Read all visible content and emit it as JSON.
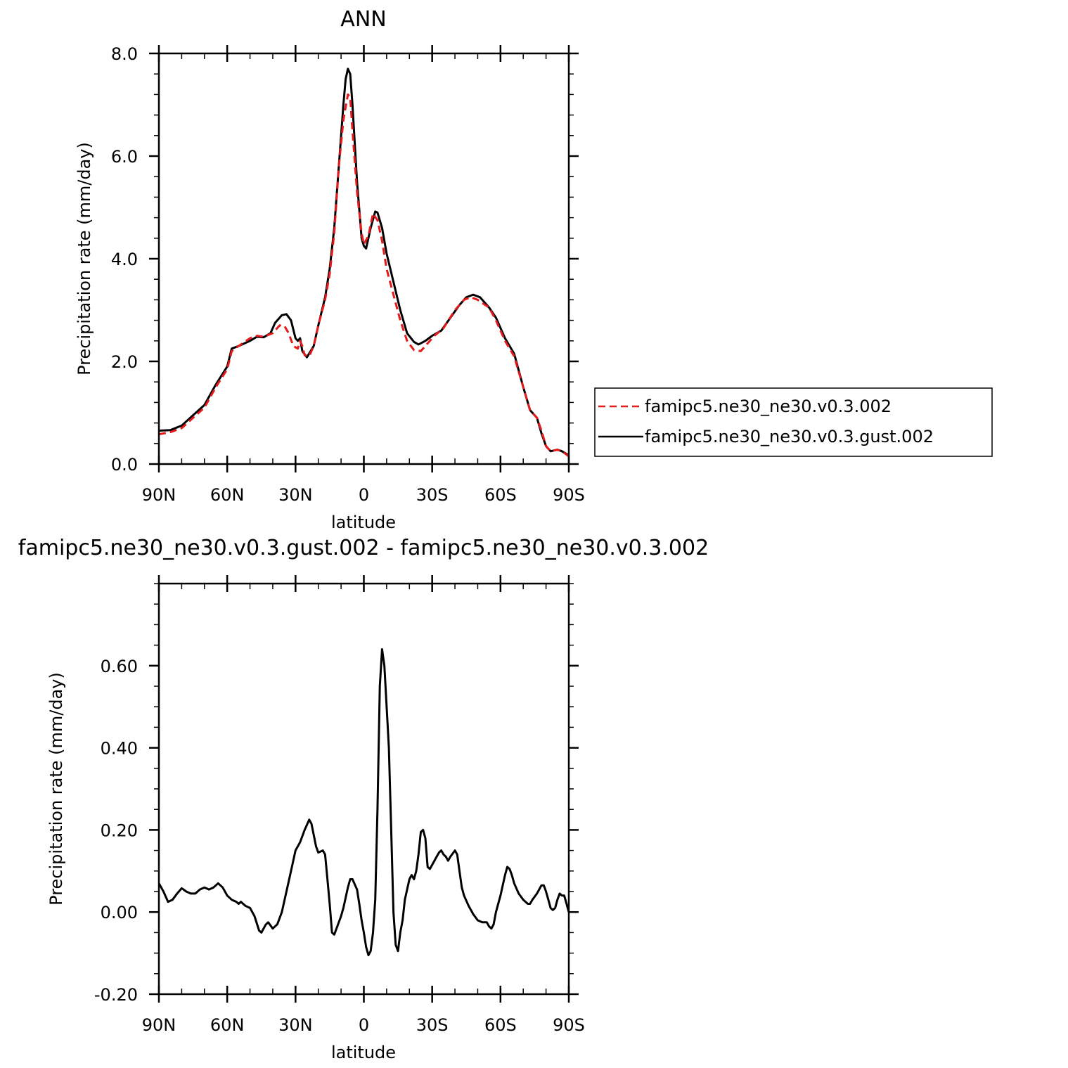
{
  "chart_data": [
    {
      "type": "line",
      "title": "ANN",
      "xlabel": "latitude",
      "ylabel": "Precipitation rate (mm/day)",
      "xlim": [
        90,
        -90
      ],
      "ylim": [
        0,
        8
      ],
      "x_ticks": [
        90,
        60,
        30,
        0,
        -30,
        -60,
        -90
      ],
      "x_tick_labels": [
        "90N",
        "60N",
        "30N",
        "0",
        "30S",
        "60S",
        "90S"
      ],
      "y_ticks": [
        0,
        2,
        4,
        6,
        8
      ],
      "y_tick_labels": [
        "0.0",
        "2.0",
        "4.0",
        "6.0",
        "8.0"
      ],
      "legend_position": "right",
      "series": [
        {
          "name": "famipc5.ne30_ne30.v0.3.002",
          "color": "#e41a1c",
          "dash": true,
          "points": [
            [
              90,
              0.58
            ],
            [
              85,
              0.62
            ],
            [
              80,
              0.7
            ],
            [
              75,
              0.9
            ],
            [
              70,
              1.1
            ],
            [
              65,
              1.5
            ],
            [
              60,
              1.85
            ],
            [
              58,
              2.2
            ],
            [
              55,
              2.3
            ],
            [
              50,
              2.45
            ],
            [
              47,
              2.5
            ],
            [
              44,
              2.48
            ],
            [
              40,
              2.55
            ],
            [
              37,
              2.7
            ],
            [
              35,
              2.7
            ],
            [
              33,
              2.55
            ],
            [
              31,
              2.3
            ],
            [
              29,
              2.25
            ],
            [
              28,
              2.4
            ],
            [
              27,
              2.3
            ],
            [
              26,
              2.12
            ],
            [
              24,
              2.1
            ],
            [
              22,
              2.3
            ],
            [
              20,
              2.7
            ],
            [
              17,
              3.2
            ],
            [
              15,
              3.7
            ],
            [
              13,
              4.5
            ],
            [
              11,
              5.8
            ],
            [
              9,
              6.7
            ],
            [
              7,
              7.2
            ],
            [
              6,
              7.15
            ],
            [
              5,
              6.5
            ],
            [
              3,
              5.3
            ],
            [
              1,
              4.5
            ],
            [
              0,
              4.28
            ],
            [
              -2,
              4.45
            ],
            [
              -4,
              4.88
            ],
            [
              -6,
              4.75
            ],
            [
              -8,
              4.35
            ],
            [
              -10,
              3.8
            ],
            [
              -13,
              3.3
            ],
            [
              -16,
              2.8
            ],
            [
              -19,
              2.4
            ],
            [
              -22,
              2.22
            ],
            [
              -25,
              2.2
            ],
            [
              -28,
              2.35
            ],
            [
              -31,
              2.5
            ],
            [
              -35,
              2.65
            ],
            [
              -40,
              3.0
            ],
            [
              -44,
              3.2
            ],
            [
              -47,
              3.25
            ],
            [
              -50,
              3.2
            ],
            [
              -55,
              3.05
            ],
            [
              -58,
              2.8
            ],
            [
              -62,
              2.4
            ],
            [
              -66,
              2.1
            ],
            [
              -70,
              1.5
            ],
            [
              -73,
              1.05
            ],
            [
              -76,
              0.9
            ],
            [
              -78,
              0.65
            ],
            [
              -80,
              0.35
            ],
            [
              -82,
              0.25
            ],
            [
              -85,
              0.28
            ],
            [
              -87,
              0.25
            ],
            [
              -90,
              0.15
            ]
          ]
        },
        {
          "name": "famipc5.ne30_ne30.v0.3.gust.002",
          "color": "#000000",
          "dash": false,
          "points": [
            [
              90,
              0.65
            ],
            [
              85,
              0.66
            ],
            [
              80,
              0.75
            ],
            [
              75,
              0.95
            ],
            [
              70,
              1.15
            ],
            [
              65,
              1.55
            ],
            [
              60,
              1.9
            ],
            [
              58,
              2.25
            ],
            [
              55,
              2.3
            ],
            [
              50,
              2.4
            ],
            [
              47,
              2.48
            ],
            [
              44,
              2.47
            ],
            [
              41,
              2.55
            ],
            [
              39,
              2.75
            ],
            [
              36,
              2.9
            ],
            [
              34,
              2.92
            ],
            [
              32,
              2.8
            ],
            [
              30,
              2.45
            ],
            [
              29,
              2.4
            ],
            [
              28,
              2.45
            ],
            [
              27,
              2.2
            ],
            [
              25,
              2.08
            ],
            [
              22,
              2.3
            ],
            [
              20,
              2.7
            ],
            [
              17,
              3.25
            ],
            [
              15,
              3.8
            ],
            [
              13,
              4.6
            ],
            [
              11,
              5.8
            ],
            [
              9,
              7.0
            ],
            [
              8,
              7.5
            ],
            [
              7,
              7.7
            ],
            [
              6,
              7.6
            ],
            [
              5,
              7.0
            ],
            [
              3,
              5.5
            ],
            [
              1,
              4.4
            ],
            [
              0,
              4.25
            ],
            [
              -1,
              4.2
            ],
            [
              -3,
              4.6
            ],
            [
              -5,
              4.92
            ],
            [
              -6,
              4.9
            ],
            [
              -8,
              4.6
            ],
            [
              -10,
              4.1
            ],
            [
              -13,
              3.55
            ],
            [
              -16,
              3.0
            ],
            [
              -19,
              2.55
            ],
            [
              -22,
              2.38
            ],
            [
              -24,
              2.33
            ],
            [
              -27,
              2.4
            ],
            [
              -30,
              2.5
            ],
            [
              -34,
              2.6
            ],
            [
              -38,
              2.85
            ],
            [
              -42,
              3.1
            ],
            [
              -45,
              3.25
            ],
            [
              -48,
              3.3
            ],
            [
              -51,
              3.25
            ],
            [
              -55,
              3.05
            ],
            [
              -58,
              2.85
            ],
            [
              -62,
              2.45
            ],
            [
              -66,
              2.15
            ],
            [
              -70,
              1.5
            ],
            [
              -73,
              1.05
            ],
            [
              -76,
              0.9
            ],
            [
              -78,
              0.6
            ],
            [
              -80,
              0.35
            ],
            [
              -82,
              0.25
            ],
            [
              -85,
              0.28
            ],
            [
              -87,
              0.25
            ],
            [
              -90,
              0.17
            ]
          ]
        }
      ]
    },
    {
      "type": "line",
      "title": "famipc5.ne30_ne30.v0.3.gust.002 - famipc5.ne30_ne30.v0.3.002",
      "xlabel": "latitude",
      "ylabel": "Precipitation rate (mm/day)",
      "xlim": [
        90,
        -90
      ],
      "ylim": [
        -0.2,
        0.8
      ],
      "x_ticks": [
        90,
        60,
        30,
        0,
        -30,
        -60,
        -90
      ],
      "x_tick_labels": [
        "90N",
        "60N",
        "30N",
        "0",
        "30S",
        "60S",
        "90S"
      ],
      "y_ticks": [
        -0.2,
        0,
        0.2,
        0.4,
        0.6
      ],
      "y_tick_labels": [
        "-0.20",
        "0.00",
        "0.20",
        "0.40",
        "0.60"
      ],
      "series": [
        {
          "color": "#000000",
          "dash": false,
          "points": [
            [
              90,
              0.07
            ],
            [
              88,
              0.05
            ],
            [
              86,
              0.025
            ],
            [
              84,
              0.03
            ],
            [
              82,
              0.045
            ],
            [
              80,
              0.058
            ],
            [
              78,
              0.05
            ],
            [
              76,
              0.045
            ],
            [
              74,
              0.045
            ],
            [
              72,
              0.055
            ],
            [
              70,
              0.06
            ],
            [
              68,
              0.055
            ],
            [
              66,
              0.06
            ],
            [
              64,
              0.07
            ],
            [
              62,
              0.06
            ],
            [
              60,
              0.04
            ],
            [
              58,
              0.03
            ],
            [
              56,
              0.025
            ],
            [
              55,
              0.02
            ],
            [
              54,
              0.025
            ],
            [
              52,
              0.015
            ],
            [
              50,
              0.01
            ],
            [
              48,
              -0.01
            ],
            [
              46,
              -0.045
            ],
            [
              45,
              -0.05
            ],
            [
              43,
              -0.03
            ],
            [
              42,
              -0.025
            ],
            [
              40,
              -0.04
            ],
            [
              38,
              -0.03
            ],
            [
              36,
              0.0
            ],
            [
              34,
              0.05
            ],
            [
              32,
              0.1
            ],
            [
              30,
              0.15
            ],
            [
              28,
              0.17
            ],
            [
              26,
              0.2
            ],
            [
              24,
              0.225
            ],
            [
              23,
              0.215
            ],
            [
              21,
              0.16
            ],
            [
              20,
              0.145
            ],
            [
              18,
              0.15
            ],
            [
              17,
              0.14
            ],
            [
              16,
              0.08
            ],
            [
              15,
              0.02
            ],
            [
              14,
              -0.05
            ],
            [
              13,
              -0.055
            ],
            [
              12,
              -0.04
            ],
            [
              10,
              -0.01
            ],
            [
              9,
              0.01
            ],
            [
              7,
              0.06
            ],
            [
              6,
              0.08
            ],
            [
              5,
              0.08
            ],
            [
              3,
              0.055
            ],
            [
              2,
              0.02
            ],
            [
              1,
              -0.02
            ],
            [
              0,
              -0.05
            ],
            [
              -1,
              -0.085
            ],
            [
              -2,
              -0.105
            ],
            [
              -3,
              -0.095
            ],
            [
              -4,
              -0.05
            ],
            [
              -5,
              0.03
            ],
            [
              -6,
              0.25
            ],
            [
              -7,
              0.55
            ],
            [
              -8,
              0.64
            ],
            [
              -9,
              0.6
            ],
            [
              -10,
              0.5
            ],
            [
              -11,
              0.4
            ],
            [
              -12,
              0.2
            ],
            [
              -13,
              0.0
            ],
            [
              -14,
              -0.08
            ],
            [
              -15,
              -0.095
            ],
            [
              -16,
              -0.05
            ],
            [
              -17,
              -0.02
            ],
            [
              -18,
              0.03
            ],
            [
              -20,
              0.08
            ],
            [
              -21,
              0.09
            ],
            [
              -22,
              0.08
            ],
            [
              -23,
              0.1
            ],
            [
              -24,
              0.14
            ],
            [
              -25,
              0.195
            ],
            [
              -26,
              0.2
            ],
            [
              -27,
              0.18
            ],
            [
              -28,
              0.11
            ],
            [
              -29,
              0.105
            ],
            [
              -30,
              0.115
            ],
            [
              -32,
              0.135
            ],
            [
              -33,
              0.145
            ],
            [
              -34,
              0.15
            ],
            [
              -35,
              0.14
            ],
            [
              -36,
              0.135
            ],
            [
              -37,
              0.125
            ],
            [
              -38,
              0.135
            ],
            [
              -40,
              0.15
            ],
            [
              -41,
              0.14
            ],
            [
              -42,
              0.1
            ],
            [
              -43,
              0.06
            ],
            [
              -44,
              0.04
            ],
            [
              -46,
              0.015
            ],
            [
              -48,
              -0.005
            ],
            [
              -50,
              -0.02
            ],
            [
              -52,
              -0.025
            ],
            [
              -54,
              -0.025
            ],
            [
              -55,
              -0.035
            ],
            [
              -56,
              -0.04
            ],
            [
              -57,
              -0.03
            ],
            [
              -58,
              0.0
            ],
            [
              -60,
              0.04
            ],
            [
              -62,
              0.09
            ],
            [
              -63,
              0.11
            ],
            [
              -64,
              0.105
            ],
            [
              -65,
              0.09
            ],
            [
              -66,
              0.07
            ],
            [
              -68,
              0.045
            ],
            [
              -70,
              0.03
            ],
            [
              -72,
              0.02
            ],
            [
              -73,
              0.02
            ],
            [
              -74,
              0.03
            ],
            [
              -76,
              0.045
            ],
            [
              -78,
              0.065
            ],
            [
              -79,
              0.065
            ],
            [
              -80,
              0.05
            ],
            [
              -81,
              0.03
            ],
            [
              -82,
              0.01
            ],
            [
              -83,
              0.005
            ],
            [
              -84,
              0.01
            ],
            [
              -85,
              0.03
            ],
            [
              -86,
              0.045
            ],
            [
              -87,
              0.04
            ],
            [
              -88,
              0.04
            ],
            [
              -89,
              0.02
            ],
            [
              -90,
              0.0
            ]
          ]
        }
      ]
    }
  ]
}
